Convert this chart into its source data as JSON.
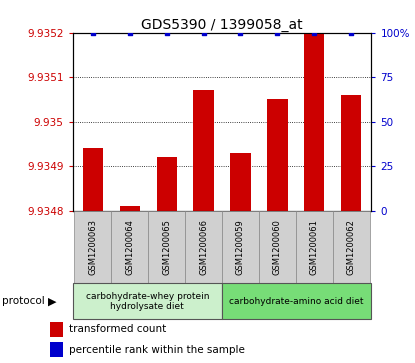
{
  "title": "GDS5390 / 1399058_at",
  "samples": [
    "GSM1200063",
    "GSM1200064",
    "GSM1200065",
    "GSM1200066",
    "GSM1200059",
    "GSM1200060",
    "GSM1200061",
    "GSM1200062"
  ],
  "transformed_counts": [
    9.93494,
    9.93481,
    9.93492,
    9.93507,
    9.93493,
    9.93505,
    9.9352,
    9.93506
  ],
  "percentile_ranks": [
    100,
    100,
    100,
    100,
    100,
    100,
    100,
    100
  ],
  "ylim_left": [
    9.9348,
    9.9352
  ],
  "ylim_right": [
    0,
    100
  ],
  "yticks_left": [
    9.9348,
    9.9349,
    9.935,
    9.9351,
    9.9352
  ],
  "ytick_labels_left": [
    "9.9348",
    "9.9349",
    "9.935",
    "9.9351",
    "9.9352"
  ],
  "yticks_right": [
    0,
    25,
    50,
    75,
    100
  ],
  "ytick_labels_right": [
    "0",
    "25",
    "50",
    "75",
    "100%"
  ],
  "bar_color": "#cc0000",
  "dot_color": "#0000cc",
  "protocol_groups": [
    {
      "label": "carbohydrate-whey protein\nhydrolysate diet",
      "start": 0,
      "end": 4,
      "color": "#ccf0cc"
    },
    {
      "label": "carbohydrate-amino acid diet",
      "start": 4,
      "end": 8,
      "color": "#77dd77"
    }
  ],
  "protocol_label": "protocol",
  "legend_bar_label": "transformed count",
  "legend_dot_label": "percentile rank within the sample",
  "title_fontsize": 10,
  "tick_fontsize": 7.5,
  "sample_fontsize": 6,
  "proto_fontsize": 6.5,
  "legend_fontsize": 7.5
}
